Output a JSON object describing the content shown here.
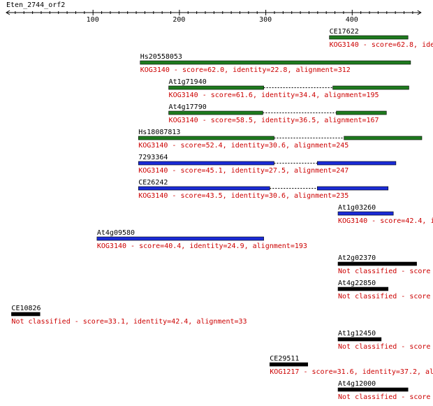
{
  "query": {
    "name": "Eten_2744_orf2"
  },
  "ruler": {
    "ticks": [
      100,
      200,
      300,
      400
    ],
    "x_min": 0,
    "x_max": 480
  },
  "colors": {
    "green": "#1e7a1e",
    "blue": "#1a2bd6",
    "black": "#000000",
    "label": "#000000",
    "desc": "#cc0000",
    "axis": "#000000"
  },
  "hits": [
    {
      "id": "CE17622",
      "color": "green",
      "desc": "KOG3140 - score=62.8, ide",
      "segments": [
        [
          374,
          465
        ]
      ]
    },
    {
      "id": "Hs20558053",
      "color": "green",
      "desc": "KOG3140 - score=62.0, identity=22.8, alignment=312",
      "segments": [
        [
          155,
          468
        ]
      ]
    },
    {
      "id": "At1g71940",
      "color": "green",
      "desc": "KOG3140 - score=61.6, identity=34.4, alignment=195",
      "segments": [
        [
          188,
          298
        ],
        [
          378,
          466
        ]
      ]
    },
    {
      "id": "At4g17790",
      "color": "green",
      "desc": "KOG3140 - score=58.5, identity=36.5, alignment=167",
      "segments": [
        [
          188,
          297
        ],
        [
          382,
          440
        ]
      ]
    },
    {
      "id": "Hs18087813",
      "color": "green",
      "desc": "KOG3140 - score=52.4, identity=30.6, alignment=245",
      "segments": [
        [
          153,
          310
        ],
        [
          391,
          481
        ]
      ]
    },
    {
      "id": "7293364",
      "color": "blue",
      "desc": "KOG3140 - score=45.1, identity=27.5, alignment=247",
      "segments": [
        [
          153,
          310
        ],
        [
          360,
          451
        ]
      ]
    },
    {
      "id": "CE26242",
      "color": "blue",
      "desc": "KOG3140 - score=43.5, identity=30.6, alignment=235",
      "segments": [
        [
          153,
          305
        ],
        [
          360,
          442
        ]
      ]
    },
    {
      "id": "At1g03260",
      "color": "blue",
      "desc": "KOG3140 - score=42.4, i",
      "segments": [
        [
          384,
          448
        ]
      ]
    },
    {
      "id": "At4g09580",
      "color": "blue",
      "desc": "KOG3140 - score=40.4, identity=24.9, alignment=193",
      "segments": [
        [
          105,
          298
        ]
      ]
    },
    {
      "id": "At2g02370",
      "color": "black",
      "desc": "Not classified - score",
      "segments": [
        [
          384,
          475
        ]
      ]
    },
    {
      "id": "At4g22850",
      "color": "black",
      "desc": "Not classified - score",
      "segments": [
        [
          384,
          442
        ]
      ]
    },
    {
      "id": "CE10826",
      "color": "black",
      "desc": "Not classified - score=33.1, identity=42.4, alignment=33",
      "segments": [
        [
          6,
          39
        ]
      ]
    },
    {
      "id": "At1g12450",
      "color": "black",
      "desc": "Not classified - score",
      "segments": [
        [
          384,
          434
        ]
      ]
    },
    {
      "id": "CE29511",
      "color": "black",
      "desc": "KOG1217 - score=31.6, identity=37.2, al",
      "segments": [
        [
          305,
          349
        ]
      ]
    },
    {
      "id": "At4g12000",
      "color": "black",
      "desc": "Not classified - score",
      "segments": [
        [
          384,
          465
        ]
      ]
    }
  ]
}
